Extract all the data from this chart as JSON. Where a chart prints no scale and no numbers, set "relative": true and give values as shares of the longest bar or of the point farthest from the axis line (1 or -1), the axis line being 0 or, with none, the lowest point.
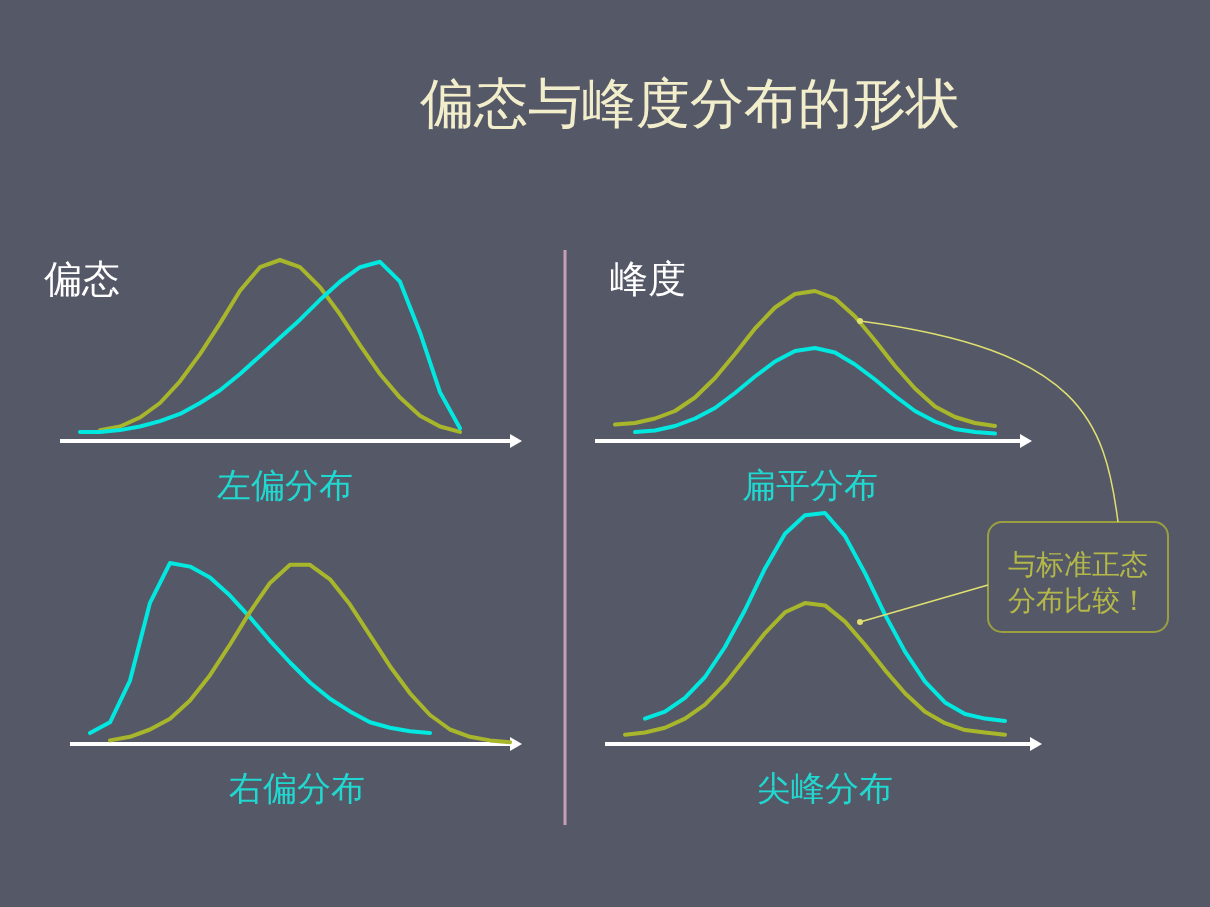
{
  "chart_data": [
    {
      "type": "other",
      "title": "偏态与峰度分布的形状"
    },
    {
      "type": "line",
      "subtitle": "偏态",
      "xlabel": "左偏分布",
      "relative": true,
      "categories": [
        null,
        null,
        null,
        null,
        null,
        null,
        null,
        null,
        null,
        null,
        null,
        null,
        null,
        null,
        null,
        null,
        null,
        null,
        null,
        null,
        null,
        null,
        null,
        null
      ],
      "series": [
        {
          "color": "#a8b62c",
          "values": [
            null,
            null,
            0.06,
            0.08,
            0.13,
            0.21,
            0.33,
            0.48,
            0.65,
            0.83,
            0.96,
            1.0,
            0.96,
            0.85,
            0.7,
            0.53,
            0.37,
            0.24,
            0.14,
            0.08,
            0.05,
            null,
            null,
            null
          ]
        },
        {
          "color": "#00e8e0",
          "values": [
            null,
            0.05,
            0.05,
            0.06,
            0.08,
            0.11,
            0.15,
            0.21,
            0.28,
            0.37,
            0.47,
            0.57,
            0.67,
            0.78,
            0.88,
            0.96,
            0.99,
            0.88,
            0.6,
            0.27,
            0.07,
            null,
            null,
            null
          ]
        }
      ]
    },
    {
      "type": "line",
      "xlabel": "右偏分布",
      "relative": true,
      "categories": [
        null,
        null,
        null,
        null,
        null,
        null,
        null,
        null,
        null,
        null,
        null,
        null,
        null,
        null,
        null,
        null,
        null,
        null,
        null,
        null,
        null,
        null,
        null
      ],
      "series": [
        {
          "color": "#00e8e0",
          "values": [
            null,
            0.06,
            0.12,
            0.35,
            0.78,
            1.0,
            0.98,
            0.92,
            0.82,
            0.7,
            0.57,
            0.45,
            0.34,
            0.25,
            0.18,
            0.12,
            0.09,
            0.07,
            0.06,
            null,
            null,
            null,
            null
          ]
        },
        {
          "color": "#a8b62c",
          "values": [
            null,
            null,
            0.02,
            0.04,
            0.08,
            0.14,
            0.24,
            0.38,
            0.55,
            0.73,
            0.89,
            0.99,
            0.99,
            0.91,
            0.77,
            0.6,
            0.43,
            0.28,
            0.16,
            0.08,
            0.04,
            0.02,
            0.01
          ]
        }
      ]
    },
    {
      "type": "line",
      "subtitle": "峰度",
      "xlabel": "扁平分布",
      "relative": true,
      "categories": [
        null,
        null,
        null,
        null,
        null,
        null,
        null,
        null,
        null,
        null,
        null,
        null,
        null,
        null,
        null,
        null,
        null,
        null,
        null,
        null,
        null,
        null,
        null
      ],
      "series": [
        {
          "color": "#a8b62c",
          "values": [
            null,
            0.11,
            0.12,
            0.15,
            0.2,
            0.29,
            0.42,
            0.58,
            0.75,
            0.89,
            0.98,
            1.0,
            0.95,
            0.83,
            0.67,
            0.5,
            0.35,
            0.23,
            0.16,
            0.12,
            0.1,
            null,
            null
          ]
        },
        {
          "color": "#00e8e0",
          "values": [
            null,
            null,
            0.06,
            0.07,
            0.1,
            0.15,
            0.22,
            0.32,
            0.43,
            0.53,
            0.6,
            0.62,
            0.59,
            0.51,
            0.41,
            0.3,
            0.2,
            0.13,
            0.08,
            0.06,
            0.05,
            null,
            null
          ]
        }
      ]
    },
    {
      "type": "line",
      "xlabel": "尖峰分布",
      "relative": true,
      "annotations": [
        "与标准正态分布比较！"
      ],
      "categories": [
        null,
        null,
        null,
        null,
        null,
        null,
        null,
        null,
        null,
        null,
        null,
        null,
        null,
        null,
        null,
        null,
        null,
        null,
        null,
        null,
        null,
        null,
        null
      ],
      "series": [
        {
          "color": "#00e8e0",
          "values": [
            null,
            null,
            0.11,
            0.14,
            0.2,
            0.29,
            0.42,
            0.58,
            0.76,
            0.91,
            0.99,
            1.0,
            0.9,
            0.74,
            0.56,
            0.4,
            0.27,
            0.18,
            0.13,
            0.11,
            0.1,
            null,
            null
          ]
        },
        {
          "color": "#a8b62c",
          "values": [
            null,
            0.04,
            0.05,
            0.07,
            0.11,
            0.17,
            0.26,
            0.37,
            0.48,
            0.57,
            0.61,
            0.6,
            0.53,
            0.43,
            0.32,
            0.22,
            0.14,
            0.09,
            0.06,
            0.05,
            0.04,
            null,
            null
          ]
        }
      ]
    }
  ]
}
